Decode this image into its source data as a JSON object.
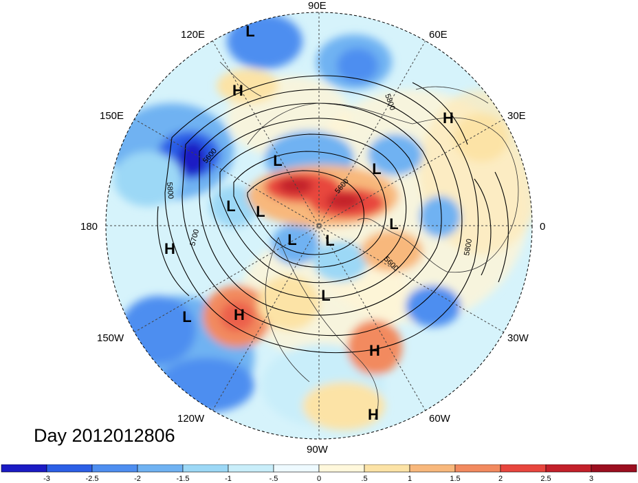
{
  "title": "Day 2012012806",
  "longitude_labels": [
    "90E",
    "60E",
    "30E",
    "0",
    "30W",
    "60W",
    "90W",
    "120W",
    "150W",
    "180",
    "150E",
    "120E"
  ],
  "contour_labels": [
    "5800",
    "5600",
    "5800",
    "5700",
    "5600",
    "5800",
    "5600"
  ],
  "pressure_centers": [
    {
      "type": "L"
    },
    {
      "type": "H"
    },
    {
      "type": "H"
    },
    {
      "type": "L"
    },
    {
      "type": "L"
    },
    {
      "type": "L"
    },
    {
      "type": "L"
    },
    {
      "type": "L"
    },
    {
      "type": "L"
    },
    {
      "type": "L"
    },
    {
      "type": "H"
    },
    {
      "type": "L"
    },
    {
      "type": "H"
    },
    {
      "type": "H"
    },
    {
      "type": "H"
    }
  ],
  "colorbar": {
    "tick_labels": [
      "-3",
      "-2.5",
      "-2",
      "-1.5",
      "-1",
      "-.5",
      "0",
      ".5",
      "1",
      "1.5",
      "2",
      "2.5",
      "3"
    ],
    "colors": [
      "#1b1bc4",
      "#2c5fe6",
      "#4e8ef0",
      "#6fb2f2",
      "#9cd8f6",
      "#c9eefa",
      "#eefaff",
      "#fff8dc",
      "#fce3a6",
      "#f8b87c",
      "#f28a5f",
      "#e8463e",
      "#c3202a",
      "#9b0e1f"
    ]
  }
}
